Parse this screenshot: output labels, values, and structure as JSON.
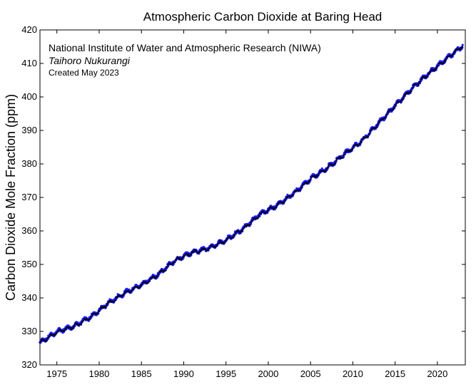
{
  "chart_data": {
    "type": "scatter",
    "title": "Atmospheric Carbon Dioxide at Baring Head",
    "xlabel": "",
    "ylabel": "Carbon Dioxide Mole Fraction (ppm)",
    "xlim": [
      1973,
      2023.3
    ],
    "ylim": [
      320,
      420
    ],
    "xticks": [
      1975,
      1980,
      1985,
      1990,
      1995,
      2000,
      2005,
      2010,
      2015,
      2020
    ],
    "yticks": [
      320,
      330,
      340,
      350,
      360,
      370,
      380,
      390,
      400,
      410,
      420
    ],
    "grid": false,
    "annotations": [
      "National Institute of Water and Atmospheric Research (NIWA)",
      "Taihoro Nukurangi",
      "Created May 2023"
    ],
    "series": [
      {
        "color": "#1a1aff",
        "marker": "dot",
        "x": [
          1973,
          1975,
          1977,
          1979,
          1981,
          1983,
          1985,
          1987,
          1989,
          1991,
          1993,
          1995,
          1997,
          1999,
          2001,
          2003,
          2005,
          2007,
          2009,
          2011,
          2013,
          2015,
          2017,
          2019,
          2021,
          2023
        ],
        "y": [
          326.7,
          329.9,
          331.6,
          334.3,
          338.3,
          341.5,
          344.0,
          347.1,
          351.3,
          353.6,
          354.9,
          357.3,
          360.6,
          365.0,
          367.6,
          371.2,
          375.6,
          378.9,
          383.0,
          386.7,
          392.1,
          397.4,
          402.6,
          407.1,
          411.3,
          415.3
        ]
      },
      {
        "color": "#000000",
        "marker": "dot",
        "x": [
          1973,
          1975,
          1977,
          1979,
          1981,
          1983,
          1985,
          1987,
          1989,
          1991,
          1993,
          1995,
          1997,
          1999,
          2001,
          2003,
          2005,
          2007,
          2009,
          2011,
          2013,
          2015,
          2017,
          2019,
          2021,
          2023
        ],
        "y": [
          326.6,
          329.8,
          331.5,
          334.2,
          338.2,
          341.4,
          343.9,
          347.0,
          351.2,
          353.5,
          354.8,
          357.2,
          360.5,
          364.9,
          367.5,
          371.1,
          375.5,
          378.8,
          382.9,
          386.6,
          392.0,
          397.3,
          402.5,
          407.0,
          411.2,
          415.2
        ]
      }
    ]
  }
}
